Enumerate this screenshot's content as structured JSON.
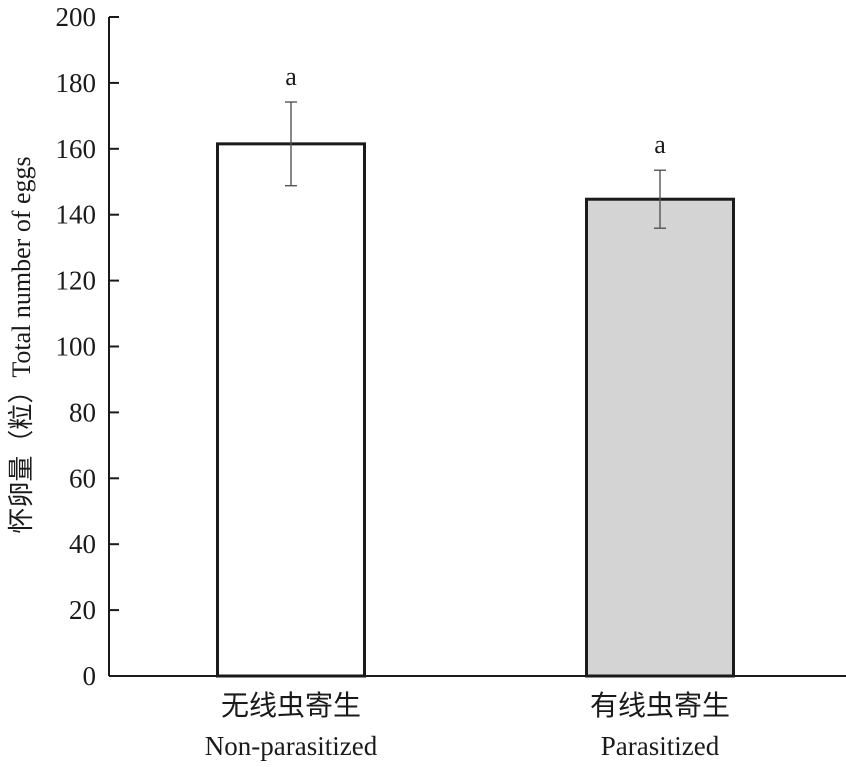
{
  "chart_data": {
    "type": "bar",
    "categories": [
      {
        "cn": "无线虫寄生",
        "en": "Non-parasitized"
      },
      {
        "cn": "有线虫寄生",
        "en": "Parasitized"
      }
    ],
    "values": [
      161.5,
      144.7
    ],
    "errors": [
      12.7,
      8.8
    ],
    "significance": [
      "a",
      "a"
    ],
    "bar_colors": [
      "#ffffff",
      "#d4d4d4"
    ],
    "ylabel": "怀卵量（粒）Total number of eggs",
    "ylim": [
      0,
      200
    ],
    "yticks": [
      0,
      20,
      40,
      60,
      80,
      100,
      120,
      140,
      160,
      180,
      200
    ],
    "grid": false
  }
}
